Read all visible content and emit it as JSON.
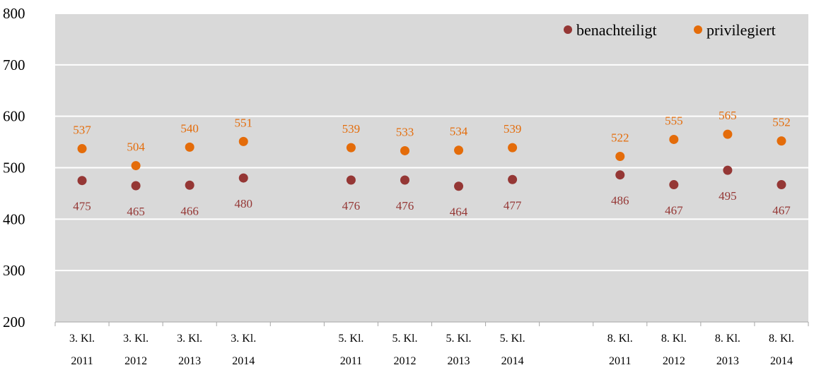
{
  "chart_data": {
    "type": "scatter",
    "title": "",
    "xlabel": "",
    "ylabel": "",
    "ylim": [
      200,
      800
    ],
    "yticks": [
      200,
      300,
      400,
      500,
      600,
      700,
      800
    ],
    "grid": true,
    "legend_position": "top-right",
    "categories": [
      [
        "3. Kl.",
        "2011"
      ],
      [
        "3. Kl.",
        "2012"
      ],
      [
        "3. Kl.",
        "2013"
      ],
      [
        "3. Kl.",
        "2014"
      ],
      [
        "5. Kl.",
        "2011"
      ],
      [
        "5. Kl.",
        "2012"
      ],
      [
        "5. Kl.",
        "2013"
      ],
      [
        "5. Kl.",
        "2014"
      ],
      [
        "8. Kl.",
        "2011"
      ],
      [
        "8. Kl.",
        "2012"
      ],
      [
        "8. Kl.",
        "2013"
      ],
      [
        "8. Kl.",
        "2014"
      ]
    ],
    "series": [
      {
        "name": "benachteiligt",
        "color": "#953735",
        "label_position": "below",
        "values": [
          475,
          465,
          466,
          480,
          476,
          476,
          464,
          477,
          486,
          467,
          495,
          467
        ]
      },
      {
        "name": "privilegiert",
        "color": "#E46C0A",
        "label_position": "above",
        "values": [
          537,
          504,
          540,
          551,
          539,
          533,
          534,
          539,
          522,
          555,
          565,
          552
        ]
      }
    ],
    "colors": {
      "plot_background": "#D9D9D9",
      "gridline": "#FFFFFF"
    }
  }
}
